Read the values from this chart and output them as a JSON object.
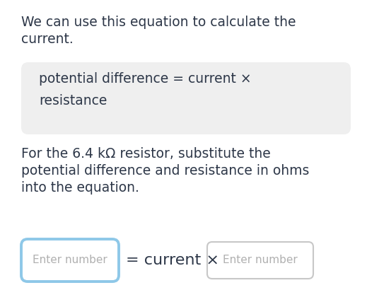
{
  "background_color": "#ffffff",
  "text_color": "#2d3748",
  "para1_line1": "We can use this equation to calculate the",
  "para1_line2": "current.",
  "formula_box_bg": "#efefef",
  "formula_line1": "potential difference = current ×",
  "formula_line2": "resistance",
  "para2_line1": "For the 6.4 kΩ resistor, substitute the",
  "para2_line2": "potential difference and resistance in ohms",
  "para2_line3": "into the equation.",
  "box1_label": "Enter number",
  "box1_border_color": "#8ec8e8",
  "box2_label": "Enter number",
  "box2_border_color": "#c8c8c8",
  "equation_middle": "= current ×",
  "box_bg": "#ffffff",
  "font_size_body": 13.5,
  "font_size_formula": 13.5,
  "font_size_equation": 16,
  "font_size_box_label": 11
}
